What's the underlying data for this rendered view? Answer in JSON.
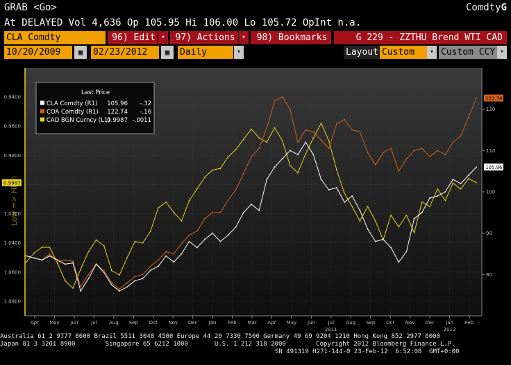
{
  "header": {
    "command": "GRAB <Go>",
    "sector": "Comdty",
    "sector_mark": "G",
    "quote_line": "At DELAYED Vol 4,636 Op 105.95 Hi 106.00 Lo 105.72 OpInt n.a."
  },
  "toolbar": {
    "security": "CLA Comdty",
    "edit": "96) Edit",
    "actions": "97) Actions",
    "bookmarks": "98) Bookmarks",
    "graph_title": "G 229 - ZZTHU Brend WTI CAD"
  },
  "controls": {
    "start_date": "10/20/2009",
    "end_date": "02/23/2012",
    "period": "Daily",
    "layout_label": "Layout",
    "layout_value": "Custom",
    "currency": "Custom CCY"
  },
  "colors": {
    "accent": "#f0a000",
    "bar_red": "#a4111a",
    "cla": "#ffffff",
    "coa": "#d2601a",
    "cad": "#e6d21e"
  },
  "footer": {
    "line1": "Australia 61 2 9777 8600 Brazil 5511 3048 4500 Europe 44 20 7330 7500 Germany 49 69 9204 1210 Hong Kong 852 2977 6000",
    "line2": "Japan 81 3 3201 8900        Singapore 65 6212 1000       U.S. 1 212 318 2000        Copyright 2012 Bloomberg Finance L.P.",
    "line3": "SN 491319 H271-144-0 23-Feb-12  6:52:08  GMT+0:00"
  },
  "chart_data": {
    "type": "line",
    "title": "Last Price",
    "left_axis_label": "Low => High",
    "x_ticks": [
      "Apr",
      "May",
      "Jun",
      "Jul",
      "Aug",
      "Sep",
      "Oct",
      "Nov",
      "Dec",
      "Jan",
      "Feb",
      "Mar",
      "Apr",
      "May",
      "Jun",
      "Jul",
      "Aug",
      "Sep",
      "Oct",
      "Nov",
      "Dec",
      "Jan",
      "Feb"
    ],
    "year_labels": [
      "2011",
      "2012"
    ],
    "left_ticks": [
      "0.9400",
      "0.9600",
      "0.9800",
      "1.0000",
      "1.0200",
      "1.0400",
      "1.0600",
      "1.0800"
    ],
    "right_ticks": [
      "120",
      "110",
      "100",
      "90",
      "80"
    ],
    "left_ylim": [
      1.09,
      0.92
    ],
    "right_ylim": [
      70,
      130
    ],
    "legend": [
      {
        "name": "CLA Comdty",
        "axis": "(R1)",
        "last": "105.96",
        "change": "-.32"
      },
      {
        "name": "COA Comdty",
        "axis": "(R1)",
        "last": "122.74",
        "change": "-.16"
      },
      {
        "name": "CAD BGN Curncy",
        "axis": "(L1)",
        "last": "0.9987",
        "change": "-.0011"
      }
    ],
    "end_labels": {
      "coa": "122.74",
      "cla": "105.96",
      "cad": "0.9987"
    },
    "series": [
      {
        "name": "CLA Comdty",
        "axis": "R1",
        "values": [
          84.5,
          84.0,
          83.5,
          84.5,
          83.5,
          82.5,
          82.8,
          76.0,
          79.0,
          82.5,
          80.5,
          77.5,
          76.0,
          77.0,
          78.5,
          79.0,
          81.0,
          82.0,
          84.5,
          83.0,
          85.0,
          88.0,
          86.5,
          88.5,
          90.0,
          88.0,
          89.5,
          91.5,
          95.0,
          97.0,
          95.5,
          103.0,
          106.0,
          108.0,
          110.0,
          109.0,
          112.0,
          109.0,
          103.0,
          100.5,
          101.0,
          97.5,
          99.0,
          95.5,
          91.0,
          88.0,
          88.5,
          86.5,
          83.0,
          85.5,
          93.5,
          95.0,
          98.5,
          99.0,
          100.0,
          103.0,
          102.0,
          104.0,
          106.0
        ]
      },
      {
        "name": "COA Comdty",
        "axis": "R1",
        "values": [
          84.5,
          84.0,
          83.5,
          85.0,
          83.0,
          83.5,
          83.2,
          77.0,
          80.0,
          82.5,
          81.0,
          78.0,
          76.5,
          78.0,
          79.5,
          80.0,
          82.0,
          83.5,
          85.5,
          85.0,
          87.5,
          89.5,
          90.5,
          93.5,
          95.0,
          95.0,
          98.0,
          100.5,
          104.5,
          108.5,
          110.5,
          115.5,
          122.0,
          123.0,
          120.0,
          112.0,
          115.0,
          114.5,
          112.5,
          110.5,
          116.5,
          117.5,
          115.0,
          114.5,
          109.5,
          106.5,
          109.5,
          110.5,
          105.0,
          108.0,
          110.0,
          110.5,
          108.5,
          110.0,
          109.0,
          112.0,
          113.5,
          118.0,
          122.7
        ]
      },
      {
        "name": "CAD BGN Curncy",
        "axis": "L1",
        "values": [
          1.053,
          1.047,
          1.043,
          1.043,
          1.054,
          1.066,
          1.071,
          1.058,
          1.046,
          1.038,
          1.042,
          1.059,
          1.062,
          1.05,
          1.039,
          1.04,
          1.032,
          1.016,
          1.012,
          1.019,
          1.025,
          1.011,
          1.003,
          0.995,
          0.99,
          0.989,
          0.981,
          0.976,
          0.969,
          0.962,
          0.968,
          0.971,
          0.961,
          0.97,
          0.987,
          0.992,
          0.979,
          0.968,
          0.958,
          0.97,
          0.99,
          1.006,
          1.015,
          1.025,
          1.015,
          1.025,
          1.038,
          1.021,
          1.029,
          1.021,
          1.033,
          1.012,
          1.015,
          1.003,
          1.011,
          0.999,
          1.003,
          0.996,
          0.9987
        ]
      }
    ]
  }
}
